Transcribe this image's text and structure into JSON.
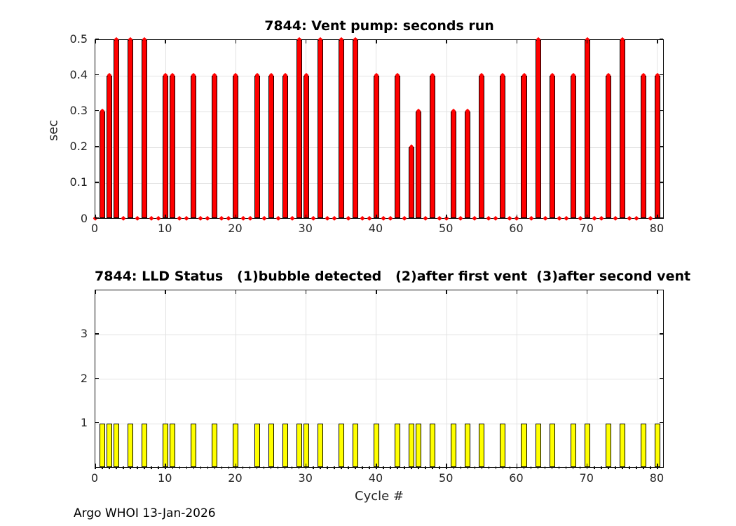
{
  "footer": "Argo WHOI 13-Jan-2026",
  "chart_data": [
    {
      "type": "bar",
      "title": "7844: Vent pump: seconds run",
      "xlabel": "",
      "ylabel": "sec",
      "xlim": [
        0,
        81
      ],
      "ylim": [
        0,
        0.5
      ],
      "xticks": [
        0,
        10,
        20,
        30,
        40,
        50,
        60,
        70,
        80
      ],
      "yticks": [
        0,
        0.1,
        0.2,
        0.3,
        0.4,
        0.5
      ],
      "ytick_labels": [
        "0",
        "0.1",
        "0.2",
        "0.3",
        "0.4",
        "0.5"
      ],
      "grid": true,
      "legend": "none",
      "bar_color": "#ff0000",
      "bar_edge_color": "#000000",
      "marker_color": "#ff0000",
      "marker_shape": "diamond",
      "marker_note": "red marker drawn at the value of every cycle 0-80; cycles not listed below have value 0",
      "cycle_range": [
        0,
        80
      ],
      "categories": [
        1,
        2,
        3,
        5,
        7,
        10,
        11,
        14,
        17,
        20,
        23,
        25,
        27,
        29,
        30,
        32,
        35,
        37,
        40,
        43,
        45,
        46,
        48,
        51,
        53,
        55,
        58,
        61,
        63,
        65,
        68,
        70,
        73,
        75,
        78,
        80
      ],
      "values": [
        0.3,
        0.4,
        0.5,
        0.5,
        0.5,
        0.4,
        0.4,
        0.4,
        0.4,
        0.4,
        0.4,
        0.4,
        0.4,
        0.5,
        0.4,
        0.5,
        0.5,
        0.5,
        0.4,
        0.4,
        0.2,
        0.3,
        0.4,
        0.3,
        0.3,
        0.4,
        0.4,
        0.4,
        0.5,
        0.4,
        0.4,
        0.5,
        0.4,
        0.5,
        0.4,
        0.4
      ]
    },
    {
      "type": "bar",
      "title": "7844: LLD Status   (1)bubble detected   (2)after first vent  (3)after second vent",
      "xlabel": "Cycle #",
      "ylabel": "",
      "xlim": [
        0,
        81
      ],
      "ylim": [
        0,
        4
      ],
      "xticks": [
        0,
        10,
        20,
        30,
        40,
        50,
        60,
        70,
        80
      ],
      "yticks": [
        1,
        2,
        3
      ],
      "ytick_labels": [
        "1",
        "2",
        "3"
      ],
      "grid": true,
      "legend": "none",
      "bar_color": "#ffff00",
      "bar_edge_color": "#000000",
      "baseline_mark_note": "small black tick below the baseline at every cycle 0-80",
      "cycle_range": [
        0,
        80
      ],
      "categories": [
        1,
        2,
        3,
        5,
        7,
        10,
        11,
        14,
        17,
        20,
        23,
        25,
        27,
        29,
        30,
        32,
        35,
        37,
        40,
        43,
        45,
        46,
        48,
        51,
        53,
        55,
        58,
        61,
        63,
        65,
        68,
        70,
        73,
        75,
        78,
        80
      ],
      "values": [
        1,
        1,
        1,
        1,
        1,
        1,
        1,
        1,
        1,
        1,
        1,
        1,
        1,
        1,
        1,
        1,
        1,
        1,
        1,
        1,
        1,
        1,
        1,
        1,
        1,
        1,
        1,
        1,
        1,
        1,
        1,
        1,
        1,
        1,
        1,
        1
      ]
    }
  ]
}
